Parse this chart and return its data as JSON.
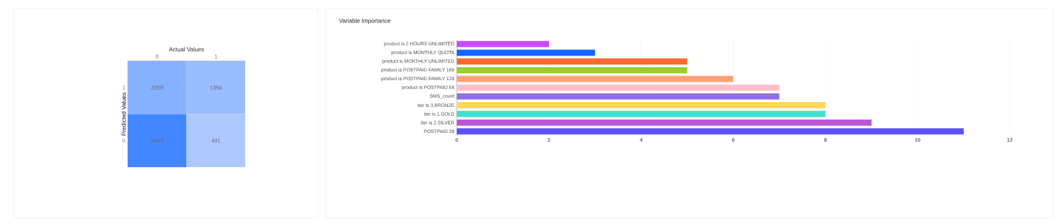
{
  "chart_data": [
    {
      "type": "heatmap",
      "xlabel": "Actual Values",
      "ylabel": "Predicted Values",
      "categories": [
        "0",
        "1"
      ],
      "y_categories": [
        "1",
        "0"
      ],
      "cells": [
        [
          2269,
          1356
        ],
        [
          5343,
          491
        ]
      ],
      "data_labels": true
    },
    {
      "type": "bar",
      "title": "Variable Importance",
      "orientation": "horizontal",
      "categories": [
        "product is 2 HOURS UNLIMITED",
        "product is MONTHLY QUOTA",
        "product is MONTHLY UNLIMITED",
        "product is POSTPAID FAMILY 189",
        "product is POSTPAID FAMILY 129",
        "product is POSTPAID 69",
        "SMS_count",
        "tier is 3.BRONZE",
        "tier is 1.GOLD",
        "tier is 2.SILVER",
        "POSTPAID 39"
      ],
      "values": [
        2,
        3,
        5,
        5,
        6,
        7,
        7,
        8,
        8,
        9,
        11
      ],
      "colors": [
        "#c94dff",
        "#1166ff",
        "#f7692d",
        "#9acd32",
        "#ffa07a",
        "#ffc0cb",
        "#9370db",
        "#ffd75a",
        "#40e0d0",
        "#ba55d3",
        "#5a52ff"
      ],
      "xlim": [
        0,
        12
      ],
      "xticks": [
        0,
        2,
        4,
        6,
        8,
        10,
        12
      ],
      "grid": "x"
    }
  ]
}
